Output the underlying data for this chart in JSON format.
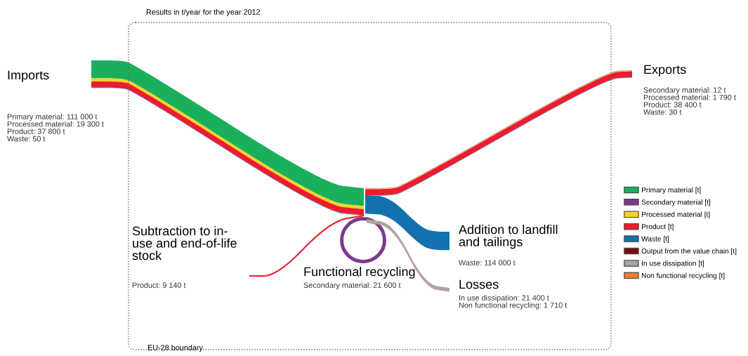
{
  "chart_data": {
    "type": "other",
    "title": "Results in t/year for the year 2012",
    "categories": [
      "Imports",
      "Exports",
      "Addition to landfill\nand tailings",
      "Subtraction to in-\nuse and end-of-life\nstock",
      "Functional recycling",
      "Losses"
    ],
    "series": [
      {
        "name": "Primary material [t]",
        "color": "#1aaf5d",
        "values": [
          111000,
          null,
          null,
          null,
          null,
          null
        ],
        "value_labels": [
          "Primary material: 111 000 t",
          null,
          null,
          null,
          null,
          null
        ]
      },
      {
        "name": "Secondary material [t]",
        "color": "#7b3a8c",
        "values": [
          null,
          12,
          null,
          null,
          21600,
          null
        ],
        "value_labels": [
          null,
          "Secondary material: 12 t",
          null,
          null,
          "Secondary material: 21 600 t",
          null
        ]
      },
      {
        "name": "Processed material [t]",
        "color": "#f5d327",
        "values": [
          19300,
          1790,
          null,
          null,
          null,
          null
        ],
        "value_labels": [
          "Processed material: 19 300 t",
          "Processed material: 1 790 t",
          null,
          null,
          null,
          null
        ]
      },
      {
        "name": "Product [t]",
        "color": "#ee1c2e",
        "values": [
          37800,
          38400,
          null,
          9140,
          null,
          null
        ],
        "value_labels": [
          "Product: 37 800 t",
          "Product: 38 400 t",
          null,
          "Product: 9 140 t",
          null,
          null
        ]
      },
      {
        "name": "Waste [t]",
        "color": "#1372ae",
        "values": [
          50,
          30,
          114000,
          null,
          null,
          null
        ],
        "value_labels": [
          "Waste: 50 t",
          "Waste: 30 t",
          "Waste: 114 000 t",
          null,
          null,
          null
        ]
      },
      {
        "name": "Output from the value chain [t]",
        "color": "#7f0a16",
        "values": [
          null,
          null,
          null,
          null,
          null,
          null
        ],
        "value_labels": [
          null,
          null,
          null,
          null,
          null,
          null
        ]
      },
      {
        "name": "In use dissipation [t]",
        "color": "#a6a6a6",
        "values": [
          null,
          null,
          null,
          null,
          null,
          21400
        ],
        "value_labels": [
          null,
          null,
          null,
          null,
          null,
          "In use dissipation: 21 400 t"
        ]
      },
      {
        "name": "Non functional recycling [t]",
        "color": "#f47b30",
        "values": [
          null,
          null,
          null,
          null,
          null,
          1710
        ],
        "value_labels": [
          null,
          null,
          null,
          null,
          null,
          "Non functional recycling: 1 710 t"
        ]
      }
    ],
    "legend": "right",
    "annotations": [
      "EU-28 boundary"
    ]
  }
}
